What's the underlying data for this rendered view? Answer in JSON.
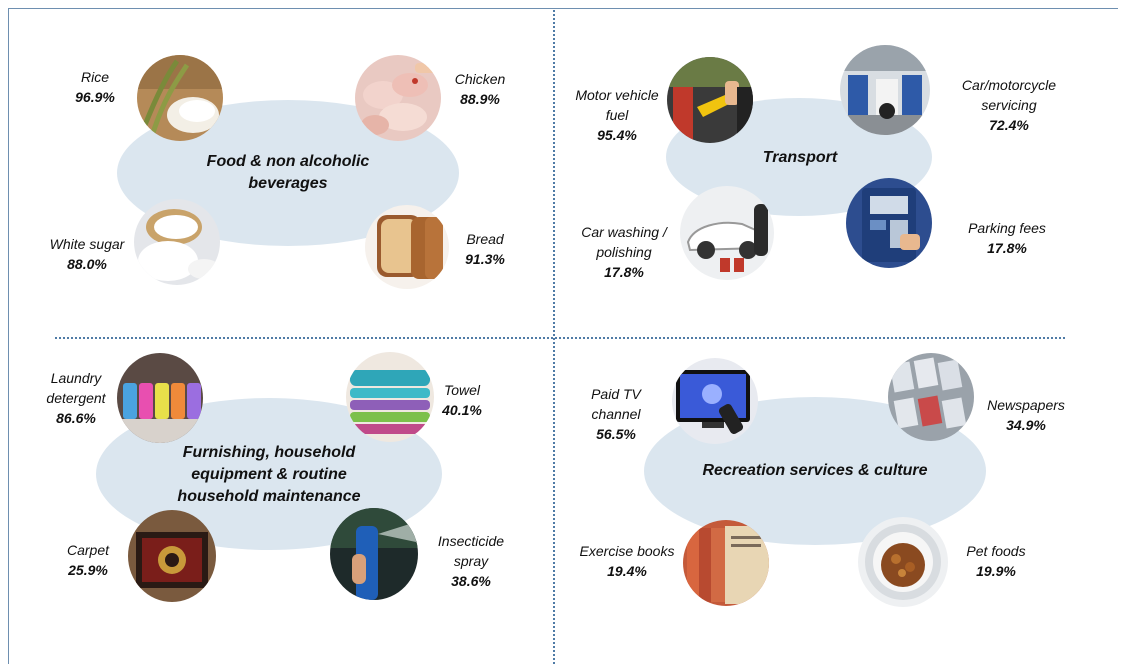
{
  "colors": {
    "ellipse": "#dbe6ef",
    "divider": "#4f7ba6"
  },
  "quadrants": {
    "food": {
      "title": "Food & non alcoholic\nbeverages",
      "items": [
        {
          "name": "Rice",
          "pct": "96.9%",
          "icon": "rice-icon"
        },
        {
          "name": "Chicken",
          "pct": "88.9%",
          "icon": "chicken-icon"
        },
        {
          "name": "White sugar",
          "pct": "88.0%",
          "icon": "sugar-icon"
        },
        {
          "name": "Bread",
          "pct": "91.3%",
          "icon": "bread-icon"
        }
      ]
    },
    "transport": {
      "title": "Transport",
      "items": [
        {
          "name": "Motor vehicle\nfuel",
          "pct": "95.4%",
          "icon": "fuel-pump-icon"
        },
        {
          "name": "Car/motorcycle\nservicing",
          "pct": "72.4%",
          "icon": "garage-icon"
        },
        {
          "name": "Car washing /\npolishing",
          "pct": "17.8%",
          "icon": "car-wash-icon"
        },
        {
          "name": "Parking fees",
          "pct": "17.8%",
          "icon": "parking-meter-icon"
        }
      ]
    },
    "furnishing": {
      "title": "Furnishing, household\nequipment & routine\nhousehold maintenance",
      "items": [
        {
          "name": "Laundry\ndetergent",
          "pct": "86.6%",
          "icon": "detergent-bottles-icon"
        },
        {
          "name": "Towel",
          "pct": "40.1%",
          "icon": "towel-icon"
        },
        {
          "name": "Carpet",
          "pct": "25.9%",
          "icon": "carpet-icon"
        },
        {
          "name": "Insecticide\nspray",
          "pct": "38.6%",
          "icon": "spray-can-icon"
        }
      ]
    },
    "recreation": {
      "title": "Recreation services & culture",
      "items": [
        {
          "name": "Paid TV\nchannel",
          "pct": "56.5%",
          "icon": "tv-remote-icon"
        },
        {
          "name": "Newspapers",
          "pct": "34.9%",
          "icon": "newspapers-icon"
        },
        {
          "name": "Exercise books",
          "pct": "19.4%",
          "icon": "exercise-books-icon"
        },
        {
          "name": "Pet foods",
          "pct": "19.9%",
          "icon": "pet-food-icon"
        }
      ]
    }
  }
}
